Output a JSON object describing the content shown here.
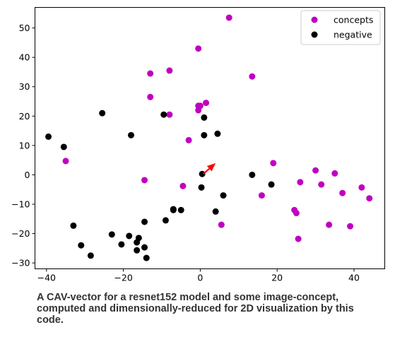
{
  "chart_data": {
    "type": "scatter",
    "xlim": [
      -43,
      48
    ],
    "ylim": [
      -32,
      57
    ],
    "xticks": [
      -40,
      -20,
      0,
      20,
      40
    ],
    "yticks": [
      -30,
      -20,
      -10,
      0,
      10,
      20,
      30,
      40,
      50
    ],
    "legend": {
      "placement": "top-right"
    },
    "grid": false,
    "series": [
      {
        "name": "concepts",
        "color": "#c000c0",
        "points": [
          [
            7.5,
            53.5
          ],
          [
            -0.5,
            43
          ],
          [
            -13,
            34.5
          ],
          [
            -8,
            35.5
          ],
          [
            13.5,
            33.5
          ],
          [
            -13,
            26.5
          ],
          [
            1.5,
            24.5
          ],
          [
            -0.5,
            23.5
          ],
          [
            0,
            23.5
          ],
          [
            -8,
            20.5
          ],
          [
            -0.5,
            22
          ],
          [
            -3,
            11.8
          ],
          [
            -35,
            4.7
          ],
          [
            19,
            4
          ],
          [
            30,
            1.5
          ],
          [
            35,
            0.5
          ],
          [
            -14.5,
            -1.8
          ],
          [
            -4.5,
            -3.8
          ],
          [
            26,
            -2.5
          ],
          [
            31.5,
            -3.3
          ],
          [
            42,
            -4.3
          ],
          [
            37,
            -6.2
          ],
          [
            16,
            -7
          ],
          [
            44,
            -8
          ],
          [
            24.5,
            -12
          ],
          [
            25,
            -13
          ],
          [
            5.5,
            -17
          ],
          [
            33.5,
            -17
          ],
          [
            39,
            -17.5
          ],
          [
            25.5,
            -21.8
          ]
        ]
      },
      {
        "name": "negative",
        "color": "#000000",
        "points": [
          [
            -39.5,
            13
          ],
          [
            -35.5,
            9.5
          ],
          [
            -25.5,
            21
          ],
          [
            -18,
            13.5
          ],
          [
            -9.5,
            20.5
          ],
          [
            1,
            19.5
          ],
          [
            1,
            13.5
          ],
          [
            4.5,
            14
          ],
          [
            0.5,
            0.3
          ],
          [
            13.5,
            0
          ],
          [
            0.3,
            -4.3
          ],
          [
            6,
            -7
          ],
          [
            18.5,
            -3.3
          ],
          [
            -7,
            -11.7
          ],
          [
            -7,
            -12
          ],
          [
            -5,
            -12
          ],
          [
            4,
            -12.5
          ],
          [
            -14.5,
            -16
          ],
          [
            -9,
            -15.5
          ],
          [
            -33,
            -17.3
          ],
          [
            -23,
            -20.3
          ],
          [
            -18.5,
            -20.8
          ],
          [
            -16,
            -21.5
          ],
          [
            -31,
            -24
          ],
          [
            -20.5,
            -23.7
          ],
          [
            -16.5,
            -23
          ],
          [
            -14.5,
            -24.7
          ],
          [
            -16.5,
            -25.7
          ],
          [
            -28.5,
            -27.5
          ],
          [
            -14,
            -28.3
          ]
        ]
      }
    ],
    "vector": {
      "from": [
        0.8,
        0.3
      ],
      "to": [
        4,
        4
      ],
      "color": "#ff0000"
    }
  },
  "caption": {
    "line1": "A CAV-vector for a resnet152 model and some image-concept,",
    "line2": "computed and dimensionally-reduced for 2D visualization by this",
    "line3": "code."
  }
}
